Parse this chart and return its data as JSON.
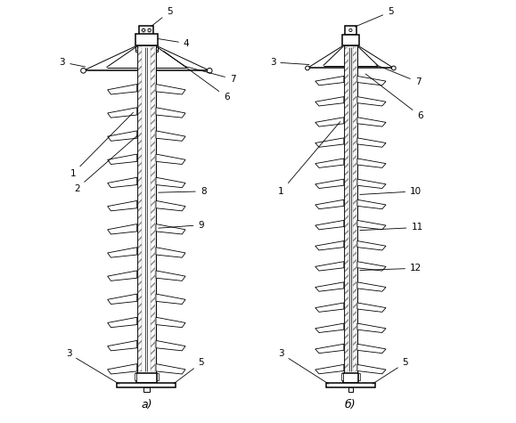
{
  "fig_width": 5.79,
  "fig_height": 4.75,
  "dpi": 100,
  "bg_color": "#ffffff",
  "line_color": "#000000",
  "lw": 0.7,
  "lw_thick": 1.1,
  "label_a": "a)",
  "label_b": "б)"
}
